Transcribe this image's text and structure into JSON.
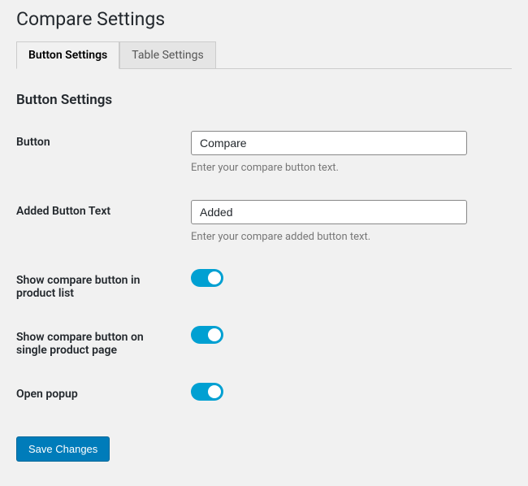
{
  "page_title": "Compare Settings",
  "tabs": {
    "button_settings": "Button Settings",
    "table_settings": "Table Settings"
  },
  "section_heading": "Button Settings",
  "fields": {
    "button": {
      "label": "Button",
      "value": "Compare",
      "description": "Enter your compare button text."
    },
    "added_button_text": {
      "label": "Added Button Text",
      "value": "Added",
      "description": "Enter your compare added button text."
    },
    "show_in_product_list": {
      "label": "Show compare button in product list",
      "value": true
    },
    "show_on_single_product": {
      "label": "Show compare button on single product page",
      "value": true
    },
    "open_popup": {
      "label": "Open popup",
      "value": true
    }
  },
  "save_button": "Save Changes",
  "colors": {
    "background": "#f1f1f1",
    "text": "#23282d",
    "muted": "#777777",
    "border": "#cccccc",
    "input_border": "#888888",
    "toggle": "#00a0d2",
    "primary_button": "#007cba",
    "white": "#ffffff"
  }
}
